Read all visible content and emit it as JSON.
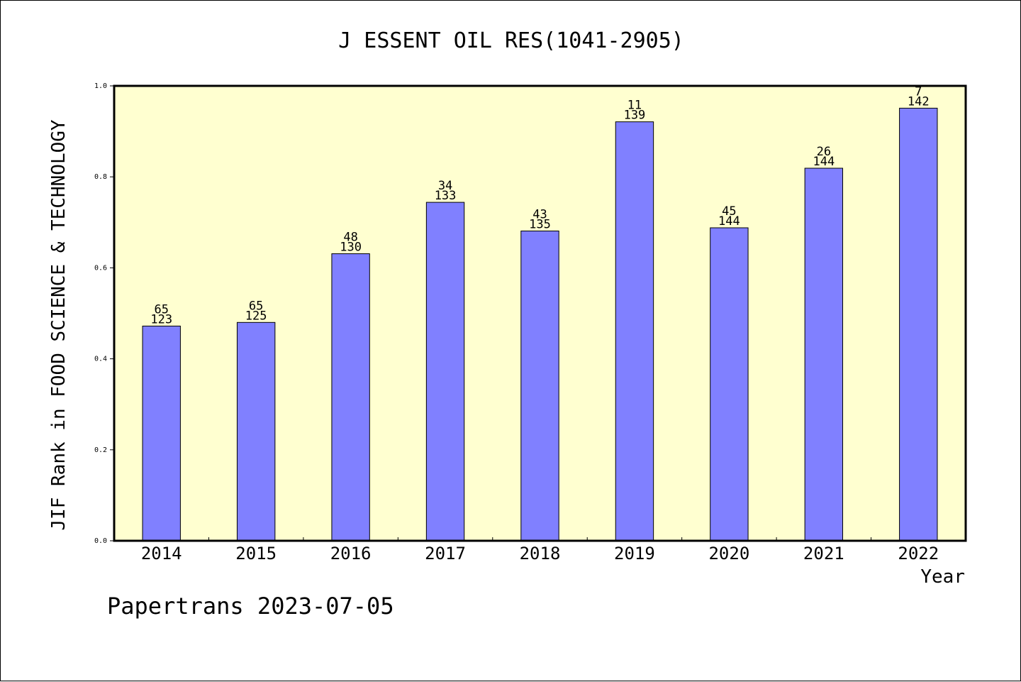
{
  "chart_data": {
    "type": "bar",
    "title": "J ESSENT OIL RES(1041-2905)",
    "xlabel": "Year",
    "ylabel": "JIF Rank in FOOD SCIENCE & TECHNOLOGY",
    "ylim": [
      0,
      1.0
    ],
    "yticks": [
      "0.0",
      "0.2",
      "0.4",
      "0.6",
      "0.8",
      "1.0"
    ],
    "categories": [
      "2014",
      "2015",
      "2016",
      "2017",
      "2018",
      "2019",
      "2020",
      "2021",
      "2022"
    ],
    "values": [
      0.472,
      0.48,
      0.631,
      0.744,
      0.681,
      0.921,
      0.688,
      0.819,
      0.951
    ],
    "ranks": [
      "65",
      "65",
      "48",
      "34",
      "43",
      "11",
      "45",
      "26",
      "7"
    ],
    "totals": [
      "123",
      "125",
      "130",
      "133",
      "135",
      "139",
      "144",
      "144",
      "142"
    ],
    "grid": false,
    "legend": "none"
  },
  "colors": {
    "plot_background": "#ffffd0",
    "bar_fill": "#8080ff",
    "bar_stroke": "#000000",
    "axis": "#000000"
  },
  "footer": "Papertrans 2023-07-05"
}
